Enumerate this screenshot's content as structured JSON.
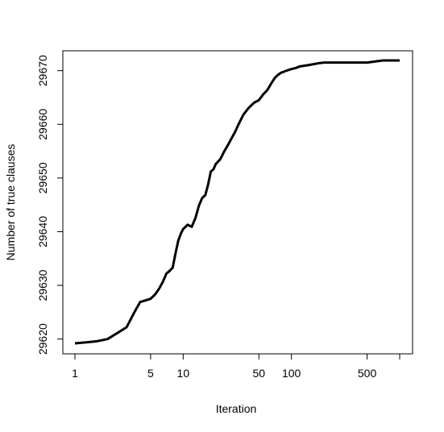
{
  "chart_data": {
    "type": "line",
    "title": "",
    "xlabel": "Iteration",
    "ylabel": "Number of true clauses",
    "x_scale": "log",
    "xlim": [
      1,
      1000
    ],
    "ylim": [
      29619.6,
      29672.4
    ],
    "x_ticks": [
      1,
      5,
      10,
      50,
      100,
      500,
      1000
    ],
    "x_tick_labels": [
      "1",
      "5",
      "10",
      "50",
      "100",
      "500",
      ""
    ],
    "y_ticks": [
      29620,
      29630,
      29640,
      29650,
      29660,
      29670
    ],
    "y_tick_labels": [
      "29620",
      "29630",
      "29640",
      "29650",
      "29660",
      "29670"
    ],
    "grid": false,
    "line_color": "#000000",
    "series": [
      {
        "x": [
          1,
          1.3,
          1.6,
          2,
          2.5,
          3,
          3.5,
          4,
          4.5,
          5,
          5.5,
          6,
          6.5,
          7,
          7.5,
          8,
          8.5,
          9,
          9.5,
          10,
          11,
          12,
          13,
          14,
          15,
          16,
          17,
          18,
          19,
          20,
          22,
          24,
          26,
          28,
          30,
          33,
          36,
          40,
          45,
          50,
          55,
          60,
          65,
          70,
          75,
          80,
          85,
          90,
          100,
          110,
          120,
          140,
          160,
          180,
          200,
          300,
          500,
          700,
          1000
        ],
        "y": [
          29619.2,
          29619.4,
          29619.6,
          29620,
          29621.2,
          29622.2,
          29624.8,
          29626.9,
          29627.2,
          29627.5,
          29628.3,
          29629.4,
          29630.7,
          29632.2,
          29632.7,
          29633.3,
          29636,
          29638.3,
          29639.6,
          29640.5,
          29641.3,
          29640.9,
          29642.6,
          29644.9,
          29646.3,
          29646.8,
          29648.8,
          29651.2,
          29651.6,
          29652.6,
          29653.5,
          29655,
          29656.2,
          29657.4,
          29658.5,
          29660.3,
          29661.8,
          29663,
          29664,
          29664.5,
          29665.6,
          29666.4,
          29667.6,
          29668.6,
          29669.2,
          29669.6,
          29669.8,
          29670,
          29670.3,
          29670.5,
          29670.8,
          29671,
          29671.2,
          29671.4,
          29671.5,
          29671.5,
          29671.5,
          29671.9,
          29671.9
        ]
      }
    ]
  }
}
